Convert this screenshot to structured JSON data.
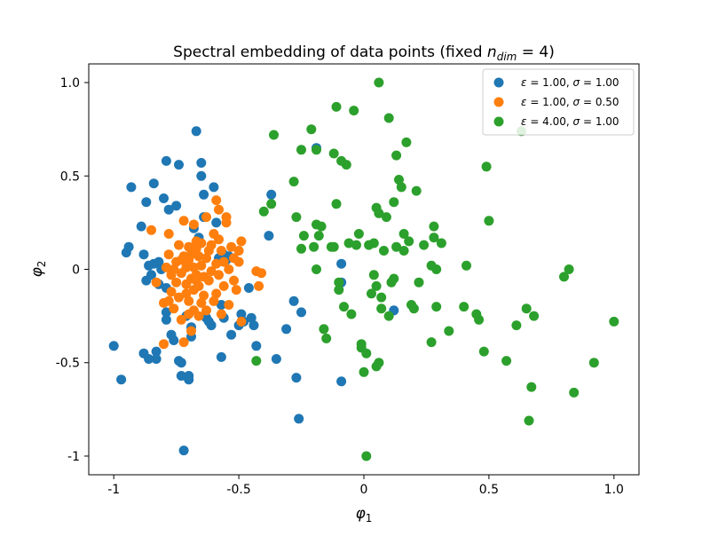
{
  "chart_data": {
    "type": "scatter",
    "title": "Spectral embedding of data points (fixed n_dim = 4)",
    "title_parts": {
      "prefix": "Spectral embedding of data points (fixed ",
      "var": "n",
      "sub": "dim",
      "suffix": " = 4)"
    },
    "xlabel": {
      "var": "φ",
      "sub": "1"
    },
    "ylabel": {
      "var": "φ",
      "sub": "2"
    },
    "xlim": [
      -1.1,
      1.1
    ],
    "ylim": [
      -1.1,
      1.1
    ],
    "xticks": [
      {
        "value": -1,
        "label": "-1"
      },
      {
        "value": -0.5,
        "label": "-0.5"
      },
      {
        "value": 0,
        "label": "0"
      },
      {
        "value": 0.5,
        "label": "0.5"
      },
      {
        "value": 1,
        "label": "1.0"
      }
    ],
    "yticks": [
      {
        "value": -1,
        "label": "-1"
      },
      {
        "value": -0.5,
        "label": "-0.5"
      },
      {
        "value": 0,
        "label": "0"
      },
      {
        "value": 0.5,
        "label": "0.5"
      },
      {
        "value": 1,
        "label": "1.0"
      }
    ],
    "grid": false,
    "legend_position": "top-right",
    "series": [
      {
        "name": "ε = 1.00, σ = 1.00",
        "color": "#1f77b4",
        "points": [
          [
            -1.0,
            -0.41
          ],
          [
            -0.97,
            -0.59
          ],
          [
            -0.95,
            0.09
          ],
          [
            -0.94,
            0.12
          ],
          [
            -0.93,
            0.44
          ],
          [
            -0.89,
            0.23
          ],
          [
            -0.88,
            0.08
          ],
          [
            -0.88,
            -0.45
          ],
          [
            -0.87,
            0.36
          ],
          [
            -0.87,
            -0.06
          ],
          [
            -0.86,
            0.02
          ],
          [
            -0.86,
            -0.48
          ],
          [
            -0.85,
            -0.03
          ],
          [
            -0.84,
            0.46
          ],
          [
            -0.84,
            0.03
          ],
          [
            -0.83,
            -0.44
          ],
          [
            -0.83,
            -0.48
          ],
          [
            -0.82,
            0.04
          ],
          [
            -0.82,
            -0.08
          ],
          [
            -0.81,
            0.0
          ],
          [
            -0.8,
            0.38
          ],
          [
            -0.79,
            -0.1
          ],
          [
            -0.79,
            -0.23
          ],
          [
            -0.79,
            -0.27
          ],
          [
            -0.79,
            0.58
          ],
          [
            -0.78,
            0.32
          ],
          [
            -0.77,
            -0.35
          ],
          [
            -0.76,
            -0.38
          ],
          [
            -0.75,
            0.34
          ],
          [
            -0.74,
            0.56
          ],
          [
            -0.74,
            -0.49
          ],
          [
            -0.73,
            -0.57
          ],
          [
            -0.73,
            -0.5
          ],
          [
            -0.72,
            -0.97
          ],
          [
            -0.71,
            -0.25
          ],
          [
            -0.7,
            -0.59
          ],
          [
            -0.7,
            -0.57
          ],
          [
            -0.69,
            -0.31
          ],
          [
            -0.69,
            -0.36
          ],
          [
            -0.68,
            0.22
          ],
          [
            -0.67,
            0.74
          ],
          [
            -0.66,
            0.17
          ],
          [
            -0.65,
            0.5
          ],
          [
            -0.65,
            0.57
          ],
          [
            -0.64,
            0.4
          ],
          [
            -0.64,
            0.28
          ],
          [
            -0.63,
            -0.26
          ],
          [
            -0.62,
            -0.28
          ],
          [
            -0.61,
            -0.3
          ],
          [
            -0.6,
            0.44
          ],
          [
            -0.59,
            0.25
          ],
          [
            -0.58,
            0.06
          ],
          [
            -0.57,
            -0.19
          ],
          [
            -0.57,
            -0.47
          ],
          [
            -0.56,
            -0.26
          ],
          [
            -0.56,
            0.08
          ],
          [
            -0.55,
            0.05
          ],
          [
            -0.54,
            0.07
          ],
          [
            -0.53,
            -0.35
          ],
          [
            -0.5,
            -0.3
          ],
          [
            -0.49,
            -0.24
          ],
          [
            -0.48,
            -0.28
          ],
          [
            -0.46,
            -0.1
          ],
          [
            -0.45,
            -0.26
          ],
          [
            -0.44,
            -0.3
          ],
          [
            -0.43,
            -0.41
          ],
          [
            -0.38,
            0.18
          ],
          [
            -0.37,
            0.4
          ],
          [
            -0.35,
            -0.48
          ],
          [
            -0.31,
            -0.32
          ],
          [
            -0.28,
            -0.17
          ],
          [
            -0.27,
            -0.58
          ],
          [
            -0.26,
            -0.8
          ],
          [
            -0.25,
            -0.23
          ],
          [
            -0.19,
            0.65
          ],
          [
            -0.09,
            -0.6
          ],
          [
            -0.09,
            0.03
          ],
          [
            -0.09,
            -0.07
          ],
          [
            0.12,
            -0.22
          ]
        ]
      },
      {
        "name": "ε = 1.00, σ = 0.50",
        "color": "#ff7f0e",
        "points": [
          [
            -0.85,
            0.21
          ],
          [
            -0.83,
            -0.07
          ],
          [
            -0.8,
            -0.4
          ],
          [
            -0.8,
            -0.18
          ],
          [
            -0.79,
            0.01
          ],
          [
            -0.78,
            0.08
          ],
          [
            -0.78,
            -0.17
          ],
          [
            -0.78,
            0.19
          ],
          [
            -0.77,
            -0.03
          ],
          [
            -0.77,
            -0.12
          ],
          [
            -0.76,
            0.0
          ],
          [
            -0.76,
            -0.21
          ],
          [
            -0.75,
            0.04
          ],
          [
            -0.75,
            -0.07
          ],
          [
            -0.74,
            0.13
          ],
          [
            -0.74,
            -0.15
          ],
          [
            -0.73,
            -0.02
          ],
          [
            -0.73,
            0.05
          ],
          [
            -0.73,
            -0.27
          ],
          [
            -0.72,
            0.26
          ],
          [
            -0.72,
            -0.39
          ],
          [
            -0.72,
            0.07
          ],
          [
            -0.71,
            0.01
          ],
          [
            -0.71,
            -0.13
          ],
          [
            -0.71,
            -0.08
          ],
          [
            -0.7,
            0.12
          ],
          [
            -0.7,
            -0.24
          ],
          [
            -0.7,
            0.05
          ],
          [
            -0.7,
            -0.17
          ],
          [
            -0.69,
            -0.05
          ],
          [
            -0.69,
            0.08
          ],
          [
            -0.69,
            -0.33
          ],
          [
            -0.68,
            0.24
          ],
          [
            -0.68,
            0.01
          ],
          [
            -0.68,
            -0.22
          ],
          [
            -0.68,
            -0.11
          ],
          [
            -0.67,
            0.15
          ],
          [
            -0.67,
            -0.03
          ],
          [
            -0.67,
            -0.06
          ],
          [
            -0.67,
            0.11
          ],
          [
            -0.66,
            0.07
          ],
          [
            -0.66,
            -0.09
          ],
          [
            -0.66,
            -0.25
          ],
          [
            -0.65,
            0.02
          ],
          [
            -0.65,
            0.14
          ],
          [
            -0.65,
            -0.18
          ],
          [
            -0.64,
            -0.04
          ],
          [
            -0.64,
            -0.14
          ],
          [
            -0.63,
            0.28
          ],
          [
            -0.63,
            0.06
          ],
          [
            -0.63,
            -0.22
          ],
          [
            -0.62,
            0.1
          ],
          [
            -0.62,
            -0.06
          ],
          [
            -0.61,
            0.13
          ],
          [
            -0.61,
            -0.01
          ],
          [
            -0.6,
            -0.17
          ],
          [
            -0.6,
            0.19
          ],
          [
            -0.59,
            0.03
          ],
          [
            -0.59,
            -0.13
          ],
          [
            -0.59,
            0.37
          ],
          [
            -0.58,
            0.32
          ],
          [
            -0.58,
            -0.03
          ],
          [
            -0.58,
            0.16
          ],
          [
            -0.57,
            -0.24
          ],
          [
            -0.57,
            0.1
          ],
          [
            -0.56,
            -0.09
          ],
          [
            -0.56,
            0.04
          ],
          [
            -0.55,
            0.25
          ],
          [
            -0.55,
            0.28
          ],
          [
            -0.54,
            -0.19
          ],
          [
            -0.54,
            0.0
          ],
          [
            -0.53,
            0.12
          ],
          [
            -0.52,
            -0.06
          ],
          [
            -0.52,
            0.06
          ],
          [
            -0.51,
            -0.11
          ],
          [
            -0.5,
            0.1
          ],
          [
            -0.5,
            0.04
          ],
          [
            -0.49,
            0.15
          ],
          [
            -0.49,
            -0.28
          ],
          [
            -0.43,
            -0.01
          ],
          [
            -0.42,
            -0.09
          ],
          [
            -0.41,
            -0.02
          ]
        ]
      },
      {
        "name": "ε = 4.00, σ = 1.00",
        "color": "#2ca02c",
        "points": [
          [
            -0.43,
            -0.49
          ],
          [
            -0.4,
            0.31
          ],
          [
            -0.37,
            0.35
          ],
          [
            -0.36,
            0.72
          ],
          [
            -0.28,
            0.47
          ],
          [
            -0.27,
            0.28
          ],
          [
            -0.25,
            0.64
          ],
          [
            -0.25,
            0.11
          ],
          [
            -0.24,
            0.18
          ],
          [
            -0.21,
            0.75
          ],
          [
            -0.2,
            0.12
          ],
          [
            -0.19,
            0.64
          ],
          [
            -0.19,
            0.24
          ],
          [
            -0.19,
            0.0
          ],
          [
            -0.18,
            0.18
          ],
          [
            -0.17,
            0.23
          ],
          [
            -0.16,
            -0.32
          ],
          [
            -0.15,
            -0.37
          ],
          [
            -0.13,
            0.12
          ],
          [
            -0.12,
            0.62
          ],
          [
            -0.12,
            0.12
          ],
          [
            -0.11,
            0.87
          ],
          [
            -0.11,
            0.35
          ],
          [
            -0.1,
            -0.07
          ],
          [
            -0.1,
            -0.11
          ],
          [
            -0.09,
            0.58
          ],
          [
            -0.08,
            -0.2
          ],
          [
            -0.07,
            0.56
          ],
          [
            -0.06,
            0.14
          ],
          [
            -0.05,
            -0.24
          ],
          [
            -0.04,
            0.85
          ],
          [
            -0.03,
            0.13
          ],
          [
            -0.02,
            0.19
          ],
          [
            -0.01,
            -0.4
          ],
          [
            -0.01,
            -0.42
          ],
          [
            0.0,
            -0.55
          ],
          [
            0.01,
            -1.0
          ],
          [
            0.01,
            -0.45
          ],
          [
            0.02,
            0.13
          ],
          [
            0.03,
            -0.13
          ],
          [
            0.04,
            0.14
          ],
          [
            0.04,
            -0.03
          ],
          [
            0.05,
            -0.09
          ],
          [
            0.05,
            0.33
          ],
          [
            0.05,
            -0.52
          ],
          [
            0.06,
            1.0
          ],
          [
            0.06,
            0.3
          ],
          [
            0.06,
            -0.5
          ],
          [
            0.07,
            -0.15
          ],
          [
            0.07,
            -0.21
          ],
          [
            0.08,
            0.1
          ],
          [
            0.09,
            0.28
          ],
          [
            0.1,
            0.81
          ],
          [
            0.1,
            -0.25
          ],
          [
            0.11,
            -0.07
          ],
          [
            0.12,
            0.36
          ],
          [
            0.12,
            -0.05
          ],
          [
            0.13,
            0.61
          ],
          [
            0.13,
            0.12
          ],
          [
            0.14,
            0.48
          ],
          [
            0.15,
            0.44
          ],
          [
            0.16,
            0.19
          ],
          [
            0.16,
            0.1
          ],
          [
            0.17,
            0.68
          ],
          [
            0.18,
            0.15
          ],
          [
            0.19,
            -0.19
          ],
          [
            0.2,
            -0.21
          ],
          [
            0.21,
            0.42
          ],
          [
            0.22,
            -0.07
          ],
          [
            0.24,
            0.13
          ],
          [
            0.27,
            0.02
          ],
          [
            0.27,
            -0.39
          ],
          [
            0.28,
            0.17
          ],
          [
            0.28,
            0.23
          ],
          [
            0.29,
            0.0
          ],
          [
            0.29,
            -0.2
          ],
          [
            0.31,
            0.14
          ],
          [
            0.34,
            -0.33
          ],
          [
            0.4,
            -0.2
          ],
          [
            0.41,
            0.02
          ],
          [
            0.45,
            -0.24
          ],
          [
            0.46,
            -0.27
          ],
          [
            0.48,
            -0.44
          ],
          [
            0.49,
            0.55
          ],
          [
            0.5,
            0.26
          ],
          [
            0.57,
            -0.49
          ],
          [
            0.61,
            -0.3
          ],
          [
            0.63,
            0.74
          ],
          [
            0.65,
            -0.21
          ],
          [
            0.66,
            -0.81
          ],
          [
            0.67,
            -0.63
          ],
          [
            0.68,
            -0.25
          ],
          [
            0.8,
            -0.04
          ],
          [
            0.82,
            0.0
          ],
          [
            0.84,
            -0.66
          ],
          [
            0.92,
            -0.5
          ],
          [
            1.0,
            -0.28
          ]
        ]
      }
    ]
  },
  "legend": [
    {
      "var1": "ε",
      "val1": " = 1.00, ",
      "var2": "σ",
      "val2": " = 1.00"
    },
    {
      "var1": "ε",
      "val1": " = 1.00, ",
      "var2": "σ",
      "val2": " = 0.50"
    },
    {
      "var1": "ε",
      "val1": " = 4.00, ",
      "var2": "σ",
      "val2": " = 1.00"
    }
  ]
}
